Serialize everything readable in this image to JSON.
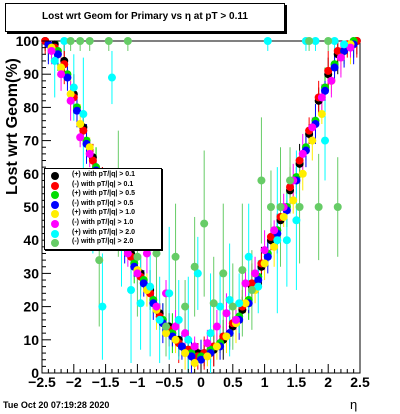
{
  "title": "Lost wrt Geom for Primary vs   η at pT > 0.11",
  "footer_timestamp": "Tue Oct 20 07:19:28 2020",
  "chart_data": {
    "type": "scatter",
    "xlabel": "η",
    "ylabel": "Lost wrt Geom(%)",
    "xlim": [
      -2.5,
      2.5
    ],
    "ylim": [
      0,
      100
    ],
    "x_ticks": [
      -2.5,
      -2,
      -1.5,
      -1,
      -0.5,
      0,
      0.5,
      1,
      1.5,
      2,
      2.5
    ],
    "x_tick_labels": [
      "−2.5",
      "−2",
      "−1.5",
      "−1",
      "−0.5",
      "0",
      "0.5",
      "1",
      "1.5",
      "2",
      "2.5"
    ],
    "y_ticks": [
      0,
      10,
      20,
      30,
      40,
      50,
      60,
      70,
      80,
      90,
      100
    ],
    "y_tick_labels": [
      "0",
      "10",
      "20",
      "30",
      "40",
      "50",
      "60",
      "70",
      "80",
      "90",
      "100"
    ],
    "grid": false,
    "legend_position": "left-middle",
    "series": [
      {
        "name": "(+) with pT/|q| > 0.1",
        "color": "#000000",
        "x": [
          -2.45,
          -2.3,
          -2.15,
          -2.0,
          -1.85,
          -1.7,
          -1.55,
          -1.4,
          -1.25,
          -1.1,
          -0.95,
          -0.8,
          -0.65,
          -0.5,
          -0.35,
          -0.2,
          -0.05,
          0.05,
          0.2,
          0.35,
          0.5,
          0.65,
          0.8,
          0.95,
          1.1,
          1.25,
          1.4,
          1.55,
          1.7,
          1.85,
          2.0,
          2.15,
          2.3,
          2.45
        ],
        "y": [
          100,
          99,
          94,
          84,
          74,
          65,
          57,
          48,
          42,
          36,
          30,
          25,
          18,
          14,
          10,
          7,
          6,
          6,
          7,
          10,
          14,
          19,
          26,
          32,
          40,
          46,
          55,
          63,
          72,
          82,
          90,
          96,
          99,
          100
        ]
      },
      {
        "name": "(-) with pT/|q| > 0.1",
        "color": "#ff0000",
        "x": [
          -2.45,
          -2.3,
          -2.15,
          -2.0,
          -1.85,
          -1.7,
          -1.55,
          -1.4,
          -1.25,
          -1.1,
          -0.95,
          -0.8,
          -0.65,
          -0.5,
          -0.35,
          -0.2,
          -0.05,
          0.05,
          0.2,
          0.35,
          0.5,
          0.65,
          0.8,
          0.95,
          1.1,
          1.25,
          1.4,
          1.55,
          1.7,
          1.85,
          2.0,
          2.15,
          2.3,
          2.45
        ],
        "y": [
          100,
          98,
          93,
          83,
          73,
          64,
          56,
          47,
          41,
          35,
          29,
          24,
          17,
          13,
          9,
          7,
          5,
          6,
          8,
          11,
          15,
          20,
          27,
          33,
          41,
          47,
          56,
          64,
          73,
          83,
          91,
          97,
          99,
          100
        ]
      },
      {
        "name": "(+) with pT/|q| > 0.5",
        "color": "#00dd00",
        "x": [
          -2.4,
          -2.25,
          -2.1,
          -1.95,
          -1.8,
          -1.65,
          -1.5,
          -1.35,
          -1.2,
          -1.05,
          -0.9,
          -0.75,
          -0.6,
          -0.45,
          -0.3,
          -0.15,
          0.0,
          0.15,
          0.3,
          0.45,
          0.6,
          0.75,
          0.9,
          1.05,
          1.2,
          1.35,
          1.5,
          1.65,
          1.8,
          1.95,
          2.1,
          2.25,
          2.4
        ],
        "y": [
          99,
          97,
          90,
          80,
          70,
          62,
          53,
          46,
          40,
          33,
          28,
          22,
          16,
          12,
          8,
          6,
          5,
          7,
          9,
          12,
          17,
          22,
          29,
          36,
          43,
          50,
          59,
          68,
          76,
          86,
          93,
          97,
          100
        ]
      },
      {
        "name": "(-) with pT/|q| > 0.5",
        "color": "#0000ff",
        "x": [
          -2.4,
          -2.25,
          -2.1,
          -1.95,
          -1.8,
          -1.65,
          -1.5,
          -1.35,
          -1.2,
          -1.05,
          -0.9,
          -0.75,
          -0.6,
          -0.45,
          -0.3,
          -0.15,
          0.0,
          0.15,
          0.3,
          0.45,
          0.6,
          0.75,
          0.9,
          1.05,
          1.2,
          1.35,
          1.5,
          1.65,
          1.8,
          1.95,
          2.1,
          2.25,
          2.4
        ],
        "y": [
          99,
          96,
          89,
          79,
          69,
          61,
          52,
          45,
          39,
          32,
          27,
          21,
          15,
          11,
          8,
          5,
          4,
          6,
          8,
          12,
          16,
          21,
          28,
          35,
          42,
          49,
          58,
          67,
          75,
          85,
          92,
          97,
          99
        ]
      },
      {
        "name": "(+) with pT/|q| > 1.0",
        "color": "#ffee00",
        "x": [
          -2.35,
          -2.2,
          -2.05,
          -1.9,
          -1.75,
          -1.6,
          -1.45,
          -1.3,
          -1.15,
          -1.0,
          -0.85,
          -0.7,
          -0.55,
          -0.4,
          -0.25,
          -0.1,
          0.1,
          0.25,
          0.4,
          0.55,
          0.7,
          0.85,
          1.0,
          1.15,
          1.3,
          1.45,
          1.6,
          1.75,
          1.9,
          2.05,
          2.2,
          2.35
        ],
        "y": [
          98,
          92,
          84,
          75,
          68,
          58,
          49,
          44,
          38,
          31,
          25,
          19,
          12,
          10,
          6,
          3,
          5,
          8,
          11,
          15,
          21,
          25,
          33,
          38,
          47,
          52,
          60,
          70,
          78,
          88,
          95,
          99
        ]
      },
      {
        "name": "(-) with pT/|q| > 1.0",
        "color": "#ff00ff",
        "x": [
          -2.35,
          -2.2,
          -2.05,
          -1.9,
          -1.75,
          -1.6,
          -1.45,
          -1.3,
          -1.15,
          -1.0,
          -0.85,
          -0.7,
          -0.55,
          -0.4,
          -0.25,
          -0.1,
          0.1,
          0.25,
          0.4,
          0.55,
          0.7,
          0.85,
          1.0,
          1.15,
          1.3,
          1.45,
          1.6,
          1.75,
          1.9,
          2.05,
          2.2,
          2.35
        ],
        "y": [
          97,
          90,
          82,
          71,
          66,
          56,
          51,
          42,
          36,
          30,
          36,
          20,
          24,
          14,
          12,
          8,
          9,
          14,
          18,
          16,
          27,
          30,
          37,
          43,
          50,
          58,
          66,
          74,
          83,
          88,
          95,
          98
        ]
      },
      {
        "name": "(+) with pT/|q| > 2.0",
        "color": "#00ffff",
        "x": [
          -2.3,
          -2.15,
          -2.0,
          -1.85,
          -1.7,
          -1.55,
          -1.4,
          -1.25,
          -1.1,
          -0.95,
          -0.8,
          -0.65,
          -0.5,
          -0.35,
          -0.2,
          -0.05,
          0.15,
          0.3,
          0.45,
          0.6,
          0.75,
          0.9,
          1.05,
          1.2,
          1.35,
          1.5,
          1.65,
          1.8,
          1.95,
          2.1,
          2.25
        ],
        "y": [
          94,
          100,
          86,
          78,
          45,
          20,
          89,
          41,
          25,
          21,
          26,
          16,
          24,
          16,
          10,
          30,
          12,
          20,
          22,
          21,
          35,
          26,
          100,
          40,
          40,
          46,
          100,
          100,
          70,
          100,
          99
        ]
      },
      {
        "name": "(-) with pT/|q| > 2.0",
        "color": "#66cc66",
        "x": [
          -2.05,
          -1.9,
          -1.75,
          -1.6,
          -1.45,
          -1.3,
          -1.15,
          -1.0,
          -0.85,
          -0.7,
          -0.55,
          -0.4,
          -0.25,
          -0.1,
          0.05,
          0.2,
          0.35,
          0.5,
          0.65,
          0.8,
          0.95,
          1.1,
          1.25,
          1.4,
          1.55,
          1.7,
          1.85,
          2.0,
          2.15
        ],
        "y": [
          100,
          100,
          100,
          34,
          100,
          54,
          100,
          35,
          50,
          36,
          14,
          35,
          20,
          32,
          45,
          21,
          30,
          20,
          31,
          25,
          58,
          50,
          50,
          58,
          50,
          100,
          50,
          100,
          50
        ]
      }
    ]
  }
}
